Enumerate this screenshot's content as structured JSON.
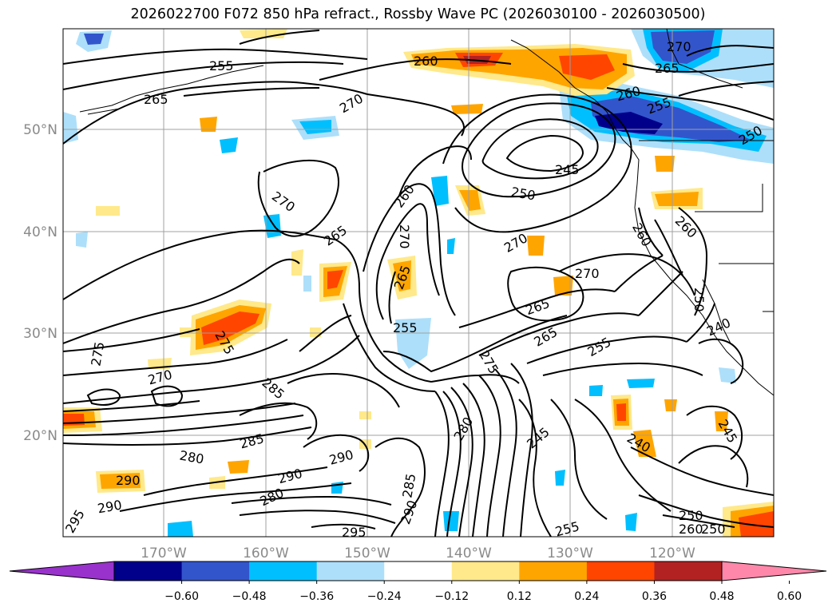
{
  "title": "2026022700 F072 850 hPa refract., Rossby Wave PC (2026030100 - 2026030500)",
  "axes": {
    "lat_labels": [
      "50°N",
      "40°N",
      "30°N",
      "20°N"
    ],
    "lon_labels": [
      "170°W",
      "160°W",
      "150°W",
      "140°W",
      "130°W",
      "120°W"
    ],
    "grid": true
  },
  "contour_labels": [
    {
      "text": "255"
    },
    {
      "text": "265"
    },
    {
      "text": "270"
    },
    {
      "text": "260"
    },
    {
      "text": "270"
    },
    {
      "text": "265"
    },
    {
      "text": "255"
    },
    {
      "text": "260"
    },
    {
      "text": "250"
    },
    {
      "text": "245"
    },
    {
      "text": "250"
    },
    {
      "text": "260"
    },
    {
      "text": "270"
    },
    {
      "text": "265"
    },
    {
      "text": "270"
    },
    {
      "text": "265"
    },
    {
      "text": "270"
    },
    {
      "text": "265"
    },
    {
      "text": "255"
    },
    {
      "text": "260"
    },
    {
      "text": "270"
    },
    {
      "text": "260"
    },
    {
      "text": "250"
    },
    {
      "text": "240"
    },
    {
      "text": "275"
    },
    {
      "text": "275"
    },
    {
      "text": "270"
    },
    {
      "text": "285"
    },
    {
      "text": "255"
    },
    {
      "text": "275"
    },
    {
      "text": "265"
    },
    {
      "text": "285"
    },
    {
      "text": "280"
    },
    {
      "text": "290"
    },
    {
      "text": "290"
    },
    {
      "text": "280"
    },
    {
      "text": "280"
    },
    {
      "text": "245"
    },
    {
      "text": "240"
    },
    {
      "text": "245"
    },
    {
      "text": "290"
    },
    {
      "text": "290"
    },
    {
      "text": "295"
    },
    {
      "text": "285"
    },
    {
      "text": "290"
    },
    {
      "text": "295"
    },
    {
      "text": "255"
    },
    {
      "text": "250"
    },
    {
      "text": "260"
    },
    {
      "text": "250"
    }
  ],
  "colorbar": {
    "tick_labels": [
      "−0.60",
      "−0.48",
      "−0.36",
      "−0.24",
      "−0.12",
      "0.12",
      "0.24",
      "0.36",
      "0.48",
      "0.60"
    ],
    "colors": [
      "#9932CC",
      "#00008B",
      "#3355CC",
      "#00BFFF",
      "#ADDFFA",
      "#FFFFFF",
      "#FFE98A",
      "#FFA500",
      "#FF4500",
      "#B22222",
      "#FF88AA"
    ]
  }
}
